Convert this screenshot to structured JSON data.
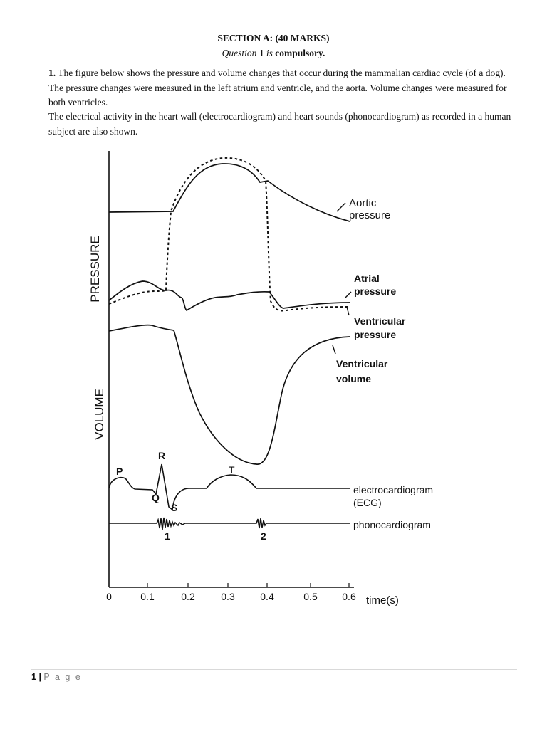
{
  "header": {
    "section": "SECTION A: (40 MARKS)",
    "question_word": "Question",
    "question_num": "1",
    "is_word": "is",
    "compulsory": "compulsory."
  },
  "question": {
    "number": "1.",
    "paragraph1": "The figure below shows the pressure and volume changes that occur during the mammalian cardiac cycle (of a dog). The pressure changes were measured in the left atrium and ventricle, and the aorta. Volume changes were measured for both ventricles.",
    "paragraph2": "The electrical activity in the heart wall (electrocardiogram) and heart sounds (phonocardiogram) as recorded in a human subject are also shown."
  },
  "figure": {
    "axis_pressure": "PRESSURE",
    "axis_volume": "VOLUME",
    "time_unit": "time(s)",
    "ticks": [
      "0",
      "0.1",
      "0.2",
      "0.3",
      "0.4",
      "0.5",
      "0.6"
    ],
    "labels": {
      "aortic_1": "Aortic",
      "aortic_2": "pressure",
      "atrial_1": "Atrial",
      "atrial_2": "pressure",
      "ventricular_p_1": "Ventricular",
      "ventricular_p_2": "pressure",
      "ventricular_v_1": "Ventricular",
      "ventricular_v_2": "volume",
      "ecg_1": "electrocardiogram",
      "ecg_2": "(ECG)",
      "phono": "phonocardiogram"
    },
    "ecg_waves": {
      "p": "P",
      "q": "Q",
      "r": "R",
      "s": "S",
      "t": "T"
    },
    "heart_sounds": {
      "first": "1",
      "second": "2"
    }
  },
  "footer": {
    "page_number": "1",
    "separator": "|",
    "page_label": "P a g e"
  }
}
